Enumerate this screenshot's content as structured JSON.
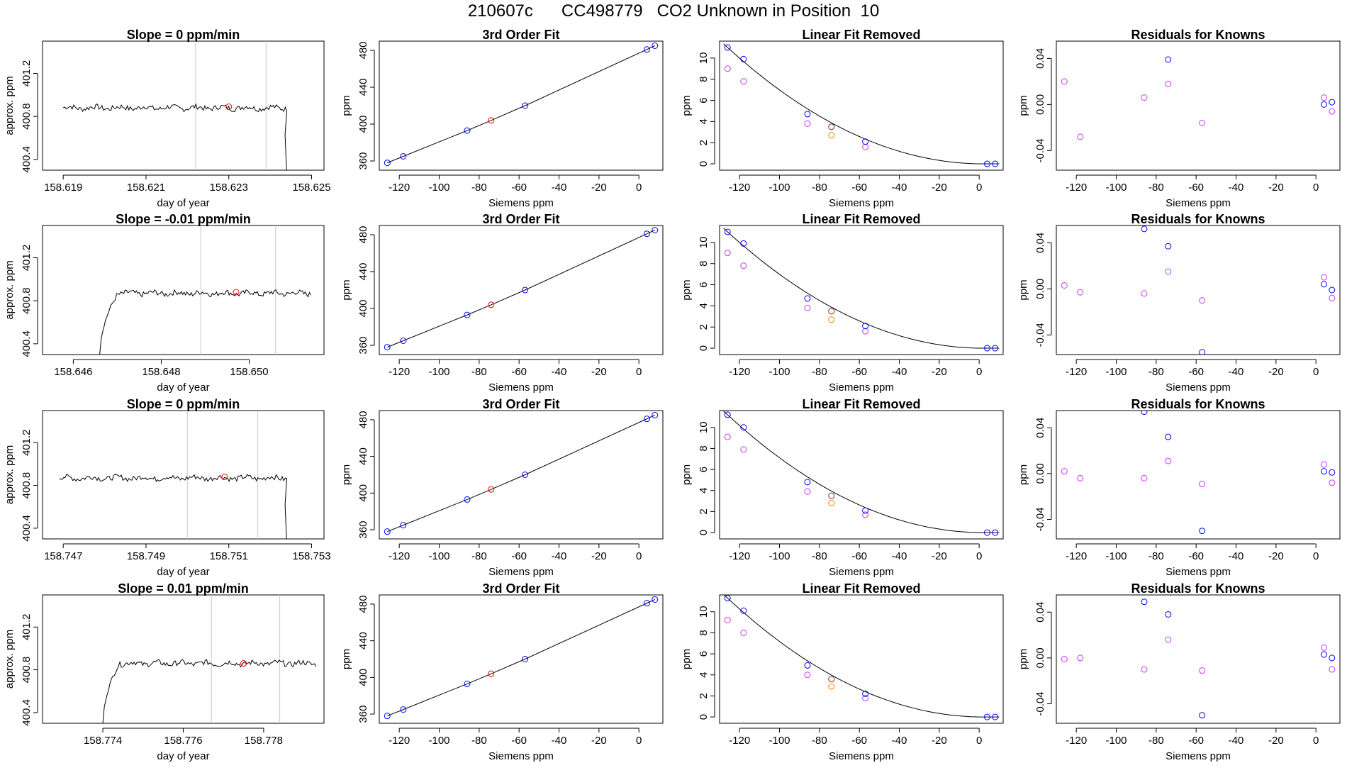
{
  "title": "210607c      CC498779   CO2 Unknown in Position  10",
  "colors": {
    "line": "#000000",
    "known_blue": "#0000ff",
    "sample_red": "#ff0000",
    "magenta": "#cc33ff",
    "orange": "#ff8000",
    "guide": "#c8c8c8"
  },
  "chart_data": [
    {
      "type": "line",
      "title": "Slope =  0  ppm/min",
      "xlabel": "day of year",
      "ylabel": "approx. ppm",
      "xlim": [
        158.6185,
        158.6253
      ],
      "ylim": [
        400.3,
        401.5
      ],
      "xticks": [
        158.619,
        158.621,
        158.623,
        158.625
      ],
      "yticks": [
        400.4,
        400.8,
        401.2
      ],
      "vlines": [
        158.6222,
        158.6239
      ],
      "marker": {
        "x": 158.623,
        "y": 400.89
      },
      "start": 158.619,
      "end": 158.6244,
      "base": 400.88,
      "drop": 158.6243,
      "rise": null
    },
    {
      "type": "scatter",
      "title": "3rd Order Fit",
      "xlabel": "Siemens ppm",
      "ylabel": "ppm",
      "xlim": [
        -130,
        12
      ],
      "ylim": [
        350,
        490
      ],
      "xticks": [
        -120,
        -100,
        -80,
        -60,
        -40,
        -20,
        0
      ],
      "yticks": [
        360,
        400,
        440,
        480
      ],
      "points": [
        [
          -126,
          358
        ],
        [
          -118,
          365
        ],
        [
          -86,
          393
        ],
        [
          -57,
          420
        ],
        [
          4,
          481
        ],
        [
          8,
          485
        ]
      ],
      "sample": [
        -74,
        404
      ]
    },
    {
      "type": "scatter",
      "title": "Linear Fit Removed",
      "xlabel": "Siemens ppm",
      "ylabel": "ppm",
      "xlim": [
        -130,
        12
      ],
      "ylim": [
        -0.6,
        11.6
      ],
      "xticks": [
        -120,
        -100,
        -80,
        -60,
        -40,
        -20,
        0
      ],
      "yticks": [
        0,
        2,
        4,
        6,
        8,
        10
      ],
      "blue": [
        [
          -126,
          11.0
        ],
        [
          -118,
          9.9
        ],
        [
          -86,
          4.7
        ],
        [
          -74,
          3.5
        ],
        [
          -57,
          2.1
        ],
        [
          4,
          0
        ],
        [
          8,
          0
        ]
      ],
      "magenta": [
        [
          -126,
          9.0
        ],
        [
          -118,
          7.8
        ],
        [
          -86,
          3.8
        ],
        [
          -57,
          1.6
        ]
      ],
      "orange": [
        -74,
        2.7
      ]
    },
    {
      "type": "scatter",
      "title": "Residuals for Knowns",
      "xlabel": "Siemens ppm",
      "ylabel": "ppm",
      "xlim": [
        -130,
        12
      ],
      "ylim": [
        -0.057,
        0.055
      ],
      "xticks": [
        -120,
        -100,
        -80,
        -60,
        -40,
        -20,
        0
      ],
      "yticks": [
        -0.04,
        0.0,
        0.04
      ],
      "blue": [
        [
          -74,
          0.039
        ],
        [
          4,
          0.0
        ],
        [
          8,
          0.002
        ]
      ],
      "magenta": [
        [
          -126,
          0.02
        ],
        [
          -118,
          -0.028
        ],
        [
          -86,
          0.006
        ],
        [
          -74,
          0.018
        ],
        [
          -57,
          -0.016
        ],
        [
          4,
          0.006
        ],
        [
          8,
          -0.006
        ]
      ]
    },
    {
      "type": "line",
      "title": "Slope =  -0.01  ppm/min",
      "xlabel": "day of year",
      "ylabel": "approx. ppm",
      "xlim": [
        158.6453,
        158.6517
      ],
      "ylim": [
        400.3,
        401.5
      ],
      "xticks": [
        158.646,
        158.648,
        158.65
      ],
      "yticks": [
        400.4,
        400.8,
        401.2
      ],
      "vlines": [
        158.6489,
        158.6506
      ],
      "marker": {
        "x": 158.6497,
        "y": 400.88
      },
      "start": 158.6466,
      "end": 158.6514,
      "base": 400.87,
      "drop": null,
      "rise": 158.6466
    },
    {
      "type": "scatter",
      "title": "3rd Order Fit",
      "xlabel": "Siemens ppm",
      "ylabel": "ppm",
      "xlim": [
        -130,
        12
      ],
      "ylim": [
        350,
        490
      ],
      "xticks": [
        -120,
        -100,
        -80,
        -60,
        -40,
        -20,
        0
      ],
      "yticks": [
        360,
        400,
        440,
        480
      ],
      "points": [
        [
          -126,
          358
        ],
        [
          -118,
          365
        ],
        [
          -86,
          393
        ],
        [
          -57,
          420
        ],
        [
          4,
          481
        ],
        [
          8,
          485
        ]
      ],
      "sample": [
        -74,
        404
      ]
    },
    {
      "type": "scatter",
      "title": "Linear Fit Removed",
      "xlabel": "Siemens ppm",
      "ylabel": "ppm",
      "xlim": [
        -130,
        12
      ],
      "ylim": [
        -0.6,
        11.6
      ],
      "xticks": [
        -120,
        -100,
        -80,
        -60,
        -40,
        -20,
        0
      ],
      "yticks": [
        0,
        2,
        4,
        6,
        8,
        10
      ],
      "blue": [
        [
          -126,
          11.0
        ],
        [
          -118,
          9.9
        ],
        [
          -86,
          4.7
        ],
        [
          -74,
          3.5
        ],
        [
          -57,
          2.1
        ],
        [
          4,
          0
        ],
        [
          8,
          0
        ]
      ],
      "magenta": [
        [
          -126,
          9.0
        ],
        [
          -118,
          7.8
        ],
        [
          -86,
          3.8
        ],
        [
          -57,
          1.6
        ]
      ],
      "orange": [
        -74,
        2.7
      ]
    },
    {
      "type": "scatter",
      "title": "Residuals for Knowns",
      "xlabel": "Siemens ppm",
      "ylabel": "ppm",
      "xlim": [
        -130,
        12
      ],
      "ylim": [
        -0.057,
        0.055
      ],
      "xticks": [
        -120,
        -100,
        -80,
        -60,
        -40,
        -20,
        0
      ],
      "yticks": [
        -0.04,
        0.0,
        0.04
      ],
      "blue": [
        [
          -86,
          0.052
        ],
        [
          -74,
          0.037
        ],
        [
          4,
          0.004
        ],
        [
          8,
          -0.001
        ],
        [
          -57,
          -0.055
        ]
      ],
      "magenta": [
        [
          -126,
          0.003
        ],
        [
          -118,
          -0.003
        ],
        [
          -86,
          -0.004
        ],
        [
          -74,
          0.015
        ],
        [
          -57,
          -0.01
        ],
        [
          4,
          0.01
        ],
        [
          8,
          -0.008
        ]
      ]
    },
    {
      "type": "line",
      "title": "Slope =  0  ppm/min",
      "xlabel": "day of year",
      "ylabel": "approx. ppm",
      "xlim": [
        158.7465,
        158.7533
      ],
      "ylim": [
        400.3,
        401.5
      ],
      "xticks": [
        158.747,
        158.749,
        158.751,
        158.753
      ],
      "yticks": [
        400.4,
        400.8,
        401.2
      ],
      "vlines": [
        158.75,
        158.7517
      ],
      "marker": {
        "x": 158.7509,
        "y": 400.88
      },
      "start": 158.7469,
      "end": 158.7524,
      "base": 400.87,
      "drop": 158.7523,
      "rise": null
    },
    {
      "type": "scatter",
      "title": "3rd Order Fit",
      "xlabel": "Siemens ppm",
      "ylabel": "ppm",
      "xlim": [
        -130,
        12
      ],
      "ylim": [
        350,
        490
      ],
      "xticks": [
        -120,
        -100,
        -80,
        -60,
        -40,
        -20,
        0
      ],
      "yticks": [
        360,
        400,
        440,
        480
      ],
      "points": [
        [
          -126,
          358
        ],
        [
          -118,
          365
        ],
        [
          -86,
          393
        ],
        [
          -57,
          420
        ],
        [
          4,
          481
        ],
        [
          8,
          485
        ]
      ],
      "sample": [
        -74,
        404
      ]
    },
    {
      "type": "scatter",
      "title": "Linear Fit Removed",
      "xlabel": "Siemens ppm",
      "ylabel": "ppm",
      "xlim": [
        -130,
        12
      ],
      "ylim": [
        -0.6,
        11.6
      ],
      "xticks": [
        -120,
        -100,
        -80,
        -60,
        -40,
        -20,
        0
      ],
      "yticks": [
        0,
        2,
        4,
        6,
        8,
        10
      ],
      "blue": [
        [
          -126,
          11.2
        ],
        [
          -118,
          10.0
        ],
        [
          -86,
          4.8
        ],
        [
          -74,
          3.5
        ],
        [
          -57,
          2.1
        ],
        [
          4,
          0
        ],
        [
          8,
          0
        ]
      ],
      "magenta": [
        [
          -126,
          9.1
        ],
        [
          -118,
          7.9
        ],
        [
          -86,
          3.9
        ],
        [
          -57,
          1.7
        ]
      ],
      "orange": [
        -74,
        2.8
      ]
    },
    {
      "type": "scatter",
      "title": "Residuals for Knowns",
      "xlabel": "Siemens ppm",
      "ylabel": "ppm",
      "xlim": [
        -130,
        12
      ],
      "ylim": [
        -0.057,
        0.055
      ],
      "xticks": [
        -120,
        -100,
        -80,
        -60,
        -40,
        -20,
        0
      ],
      "yticks": [
        -0.04,
        0.0,
        0.04
      ],
      "blue": [
        [
          -86,
          0.054
        ],
        [
          -74,
          0.032
        ],
        [
          4,
          0.002
        ],
        [
          8,
          0.001
        ],
        [
          -57,
          -0.05
        ]
      ],
      "magenta": [
        [
          -126,
          0.002
        ],
        [
          -118,
          -0.004
        ],
        [
          -86,
          -0.004
        ],
        [
          -74,
          0.011
        ],
        [
          -57,
          -0.009
        ],
        [
          4,
          0.008
        ],
        [
          8,
          -0.008
        ]
      ]
    },
    {
      "type": "line",
      "title": "Slope =  0.01  ppm/min",
      "xlabel": "day of year",
      "ylabel": "approx. ppm",
      "xlim": [
        158.7725,
        158.7795
      ],
      "ylim": [
        400.3,
        401.5
      ],
      "xticks": [
        158.774,
        158.776,
        158.778
      ],
      "yticks": [
        400.4,
        400.8,
        401.2
      ],
      "vlines": [
        158.7767,
        158.7784
      ],
      "marker": {
        "x": 158.7775,
        "y": 400.86
      },
      "start": 158.774,
      "end": 158.7793,
      "base": 400.86,
      "drop": null,
      "rise": 158.774
    },
    {
      "type": "scatter",
      "title": "3rd Order Fit",
      "xlabel": "Siemens ppm",
      "ylabel": "ppm",
      "xlim": [
        -130,
        12
      ],
      "ylim": [
        350,
        490
      ],
      "xticks": [
        -120,
        -100,
        -80,
        -60,
        -40,
        -20,
        0
      ],
      "yticks": [
        360,
        400,
        440,
        480
      ],
      "points": [
        [
          -126,
          358
        ],
        [
          -118,
          365
        ],
        [
          -86,
          393
        ],
        [
          -57,
          420
        ],
        [
          4,
          481
        ],
        [
          8,
          485
        ]
      ],
      "sample": [
        -74,
        404
      ]
    },
    {
      "type": "scatter",
      "title": "Linear Fit Removed",
      "xlabel": "Siemens ppm",
      "ylabel": "ppm",
      "xlim": [
        -130,
        12
      ],
      "ylim": [
        -0.6,
        11.6
      ],
      "xticks": [
        -120,
        -100,
        -80,
        -60,
        -40,
        -20,
        0
      ],
      "yticks": [
        0,
        2,
        4,
        6,
        8,
        10
      ],
      "blue": [
        [
          -126,
          11.3
        ],
        [
          -118,
          10.1
        ],
        [
          -86,
          4.9
        ],
        [
          -74,
          3.6
        ],
        [
          -57,
          2.2
        ],
        [
          4,
          0
        ],
        [
          8,
          0
        ]
      ],
      "magenta": [
        [
          -126,
          9.2
        ],
        [
          -118,
          8.0
        ],
        [
          -86,
          4.0
        ],
        [
          -57,
          1.8
        ]
      ],
      "orange": [
        -74,
        2.9
      ]
    },
    {
      "type": "scatter",
      "title": "Residuals for Knowns",
      "xlabel": "Siemens ppm",
      "ylabel": "ppm",
      "xlim": [
        -130,
        12
      ],
      "ylim": [
        -0.057,
        0.055
      ],
      "xticks": [
        -120,
        -100,
        -80,
        -60,
        -40,
        -20,
        0
      ],
      "yticks": [
        -0.04,
        0.0,
        0.04
      ],
      "blue": [
        [
          -86,
          0.049
        ],
        [
          -74,
          0.038
        ],
        [
          4,
          0.003
        ],
        [
          8,
          0.0
        ],
        [
          -57,
          -0.05
        ]
      ],
      "magenta": [
        [
          -126,
          -0.001
        ],
        [
          -118,
          0.0
        ],
        [
          -86,
          -0.01
        ],
        [
          -74,
          0.016
        ],
        [
          -57,
          -0.011
        ],
        [
          4,
          0.009
        ],
        [
          8,
          -0.01
        ]
      ]
    }
  ]
}
